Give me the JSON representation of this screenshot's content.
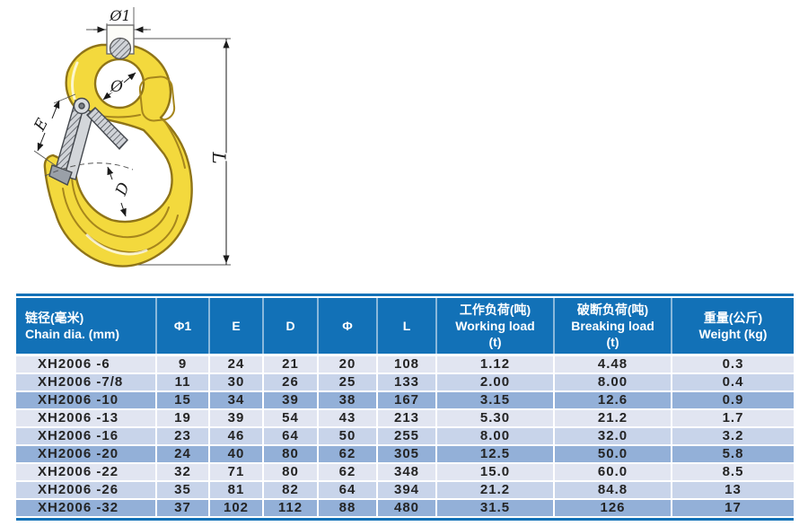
{
  "drawing": {
    "labels": {
      "phi1": "Ø1",
      "phi": "Ø",
      "e": "E",
      "d": "D",
      "l": "L"
    }
  },
  "table": {
    "columns": [
      {
        "lines": [
          "链径(毫米)",
          "Chain dia. (mm)"
        ]
      },
      {
        "lines": [
          "Φ1"
        ]
      },
      {
        "lines": [
          "E"
        ]
      },
      {
        "lines": [
          "D"
        ]
      },
      {
        "lines": [
          "Φ"
        ]
      },
      {
        "lines": [
          "L"
        ]
      },
      {
        "lines": [
          "工作负荷(吨)",
          "Working load",
          "(t)"
        ]
      },
      {
        "lines": [
          "破断负荷(吨)",
          "Breaking load",
          "(t)"
        ]
      },
      {
        "lines": [
          "重量(公斤)",
          "Weight (kg)"
        ]
      }
    ],
    "rows": [
      {
        "cells": [
          "XH2006 -6",
          "9",
          "24",
          "21",
          "20",
          "108",
          "1.12",
          "4.48",
          "0.3"
        ]
      },
      {
        "cells": [
          "XH2006 -7/8",
          "11",
          "30",
          "26",
          "25",
          "133",
          "2.00",
          "8.00",
          "0.4"
        ]
      },
      {
        "cells": [
          "XH2006 -10",
          "15",
          "34",
          "39",
          "38",
          "167",
          "3.15",
          "12.6",
          "0.9"
        ]
      },
      {
        "cells": [
          "XH2006 -13",
          "19",
          "39",
          "54",
          "43",
          "213",
          "5.30",
          "21.2",
          "1.7"
        ]
      },
      {
        "cells": [
          "XH2006 -16",
          "23",
          "46",
          "64",
          "50",
          "255",
          "8.00",
          "32.0",
          "3.2"
        ]
      },
      {
        "cells": [
          "XH2006 -20",
          "24",
          "40",
          "80",
          "62",
          "305",
          "12.5",
          "50.0",
          "5.8"
        ]
      },
      {
        "cells": [
          "XH2006 -22",
          "32",
          "71",
          "80",
          "62",
          "348",
          "15.0",
          "60.0",
          "8.5"
        ]
      },
      {
        "cells": [
          "XH2006 -26",
          "35",
          "81",
          "82",
          "64",
          "394",
          "21.2",
          "84.8",
          "13"
        ]
      },
      {
        "cells": [
          "XH2006 -32",
          "37",
          "102",
          "112",
          "88",
          "480",
          "31.5",
          "126",
          "17"
        ]
      }
    ]
  },
  "colors": {
    "header_bg": "#1271b7",
    "row_light": "#e1e5f1",
    "row_mid": "#c8d4ea",
    "row_dark": "#93b0d8",
    "hook_yellow": "#f3d93d",
    "hook_outline": "#8f7418",
    "latch_grey": "#d3d6da"
  }
}
